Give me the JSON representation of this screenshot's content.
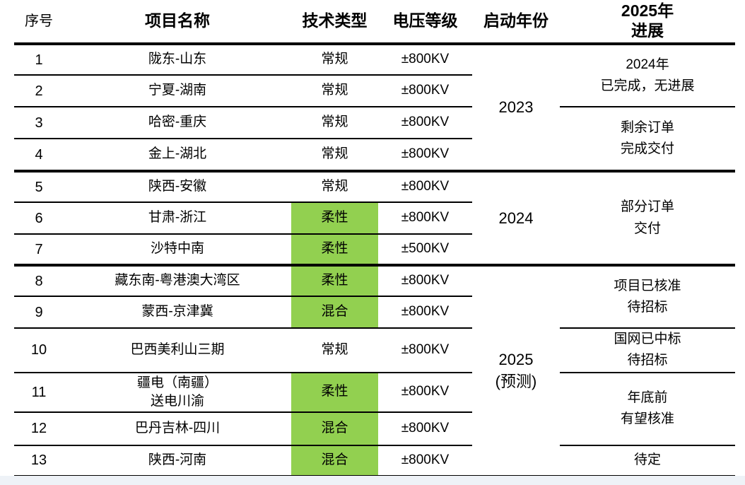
{
  "theme": {
    "green_cell": "#92D050",
    "line_color": "#000000",
    "footer_strip": "#eef2f7"
  },
  "table": {
    "headers": {
      "seq": "序号",
      "name": "项目名称",
      "tech": "技术类型",
      "voltage": "电压等级",
      "year": "启动年份",
      "progress": "2025年\n进展"
    },
    "rows": [
      {
        "seq": "1",
        "name": "陇东-山东",
        "tech": "常规",
        "voltage": "±800KV",
        "tech_highlight": false
      },
      {
        "seq": "2",
        "name": "宁夏-湖南",
        "tech": "常规",
        "voltage": "±800KV",
        "tech_highlight": false
      },
      {
        "seq": "3",
        "name": "哈密-重庆",
        "tech": "常规",
        "voltage": "±800KV",
        "tech_highlight": false
      },
      {
        "seq": "4",
        "name": "金上-湖北",
        "tech": "常规",
        "voltage": "±800KV",
        "tech_highlight": false
      },
      {
        "seq": "5",
        "name": "陕西-安徽",
        "tech": "常规",
        "voltage": "±800KV",
        "tech_highlight": false
      },
      {
        "seq": "6",
        "name": "甘肃-浙江",
        "tech": "柔性",
        "voltage": "±800KV",
        "tech_highlight": true
      },
      {
        "seq": "7",
        "name": "沙特中南",
        "tech": "柔性",
        "voltage": "±500KV",
        "tech_highlight": true
      },
      {
        "seq": "8",
        "name": "藏东南-粤港澳大湾区",
        "tech": "柔性",
        "voltage": "±800KV",
        "tech_highlight": true
      },
      {
        "seq": "9",
        "name": "蒙西-京津冀",
        "tech": "混合",
        "voltage": "±800KV",
        "tech_highlight": true
      },
      {
        "seq": "10",
        "name": "巴西美利山三期",
        "tech": "常规",
        "voltage": "±800KV",
        "tech_highlight": false
      },
      {
        "seq": "11",
        "name": "疆电（南疆）\n送电川渝",
        "tech": "柔性",
        "voltage": "±800KV",
        "tech_highlight": true
      },
      {
        "seq": "12",
        "name": "巴丹吉林-四川",
        "tech": "混合",
        "voltage": "±800KV",
        "tech_highlight": true
      },
      {
        "seq": "13",
        "name": "陕西-河南",
        "tech": "混合",
        "voltage": "±800KV",
        "tech_highlight": true
      }
    ],
    "year_groups": [
      {
        "label": "2023",
        "rows": "1-4"
      },
      {
        "label": "2024",
        "rows": "5-7"
      },
      {
        "label": "2025\n(预测)",
        "rows": "8-13"
      }
    ],
    "progress_groups": [
      {
        "label": "2024年\n已完成，无进展",
        "rows": "1-2"
      },
      {
        "label": "剩余订单\n完成交付",
        "rows": "3-4"
      },
      {
        "label": "部分订单\n交付",
        "rows": "5-7"
      },
      {
        "label": "项目已核准\n待招标",
        "rows": "8-9"
      },
      {
        "label": "国网已中标\n待招标",
        "rows": "10"
      },
      {
        "label": "年底前\n有望核准",
        "rows": "11-12"
      },
      {
        "label": "待定",
        "rows": "13"
      }
    ]
  }
}
